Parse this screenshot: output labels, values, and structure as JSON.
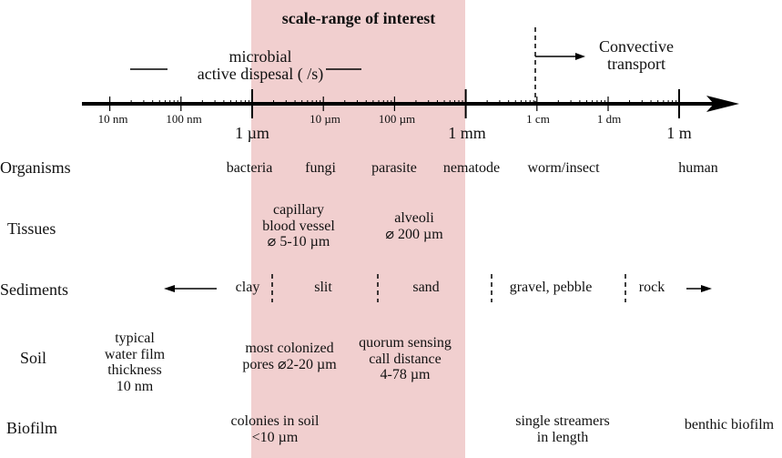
{
  "band": {
    "title": "scale-range of interest",
    "color": "#f1cfcf"
  },
  "annotations": {
    "microbial": [
      "microbial",
      "active dispesal ( /s)"
    ],
    "convective": [
      "Convective",
      "transport"
    ]
  },
  "axis": {
    "minor_labels": [
      "10 nm",
      "100 nm",
      "10 µm",
      "100 µm",
      "1 cm",
      "1 dm"
    ],
    "major_labels": [
      "1 µm",
      "1 mm",
      "1 m"
    ]
  },
  "rows": {
    "organisms": {
      "label": "Organisms",
      "items": [
        "bacteria",
        "fungi",
        "parasite",
        "nematode",
        "worm/insect",
        "human"
      ]
    },
    "tissues": {
      "label": "Tissues",
      "items": [
        [
          "capillary",
          "blood vessel",
          "⌀ 5-10 µm"
        ],
        [
          "alveoli",
          "⌀ 200 µm"
        ]
      ]
    },
    "sediments": {
      "label": "Sediments",
      "items": [
        "clay",
        "slit",
        "sand",
        "gravel, pebble",
        "rock"
      ]
    },
    "soil": {
      "label": "Soil",
      "items": [
        [
          "typical",
          "water film",
          "thickness",
          "10 nm"
        ],
        [
          "most colonized",
          "pores ⌀2-20 µm"
        ],
        [
          "quorum sensing",
          "call distance",
          "4-78 µm"
        ]
      ]
    },
    "biofilm": {
      "label": "Biofilm",
      "items": [
        [
          "colonies in soil",
          "<10 µm"
        ],
        [
          "single streamers",
          "in length"
        ],
        [
          "benthic biofilm"
        ]
      ]
    }
  }
}
